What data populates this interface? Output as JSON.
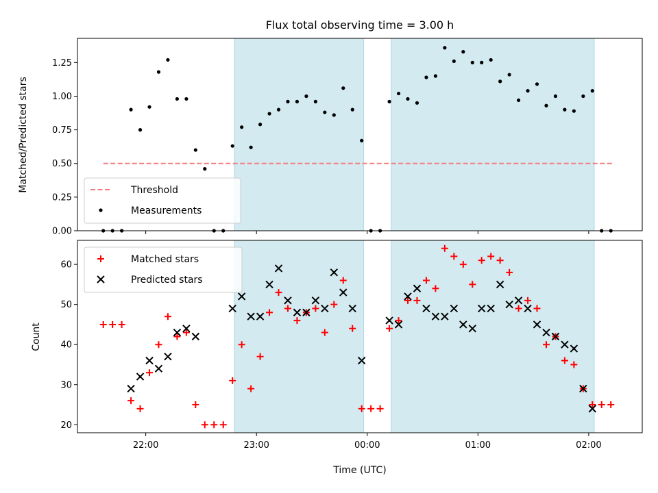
{
  "chart_data": [
    {
      "type": "scatter",
      "title": "Flux total observing time = 3.00 h",
      "ylabel": "Matched/Predicted stars",
      "xlabel": "",
      "ylim": [
        0,
        1.43
      ],
      "yticks": [
        0.0,
        0.25,
        0.5,
        0.75,
        1.0,
        1.25
      ],
      "ytick_labels": [
        "0.00",
        "0.25",
        "0.50",
        "0.75",
        "1.00",
        "1.25"
      ],
      "xlim": [
        "21:23",
        "02:29"
      ],
      "xticks": [
        "22:00",
        "23:00",
        "00:00",
        "01:00",
        "02:00"
      ],
      "shaded_intervals": [
        [
          "22:48",
          "23:58"
        ],
        [
          "00:13",
          "02:03"
        ]
      ],
      "shade_color": "#d3eaf1",
      "threshold": {
        "name": "Threshold",
        "value": 0.5,
        "x_range": [
          "21:37",
          "02:13"
        ],
        "color": "#f27d7d"
      },
      "legend": {
        "position": "lower-left",
        "entries": [
          "Threshold",
          "Measurements"
        ]
      },
      "series": [
        {
          "name": "Measurements",
          "color": "#000000",
          "marker": "dot",
          "x": [
            "21:37",
            "21:42",
            "21:47",
            "21:52",
            "21:57",
            "22:02",
            "22:07",
            "22:12",
            "22:17",
            "22:22",
            "22:27",
            "22:32",
            "22:37",
            "22:42",
            "22:47",
            "22:52",
            "22:57",
            "23:02",
            "23:07",
            "23:12",
            "23:17",
            "23:22",
            "23:27",
            "23:32",
            "23:37",
            "23:42",
            "23:47",
            "23:52",
            "23:57",
            "00:02",
            "00:07",
            "00:12",
            "00:17",
            "00:22",
            "00:27",
            "00:32",
            "00:37",
            "00:42",
            "00:47",
            "00:52",
            "00:57",
            "01:02",
            "01:07",
            "01:12",
            "01:17",
            "01:22",
            "01:27",
            "01:32",
            "01:37",
            "01:42",
            "01:47",
            "01:52",
            "01:57",
            "02:02",
            "02:07",
            "02:12"
          ],
          "y": [
            0.0,
            0.0,
            0.0,
            0.9,
            0.75,
            0.92,
            1.18,
            1.27,
            0.98,
            0.98,
            0.6,
            0.46,
            0.0,
            0.0,
            0.63,
            0.77,
            0.62,
            0.79,
            0.87,
            0.9,
            0.96,
            0.96,
            1.0,
            0.96,
            0.88,
            0.86,
            1.06,
            0.9,
            0.67,
            0.0,
            0.0,
            0.96,
            1.02,
            0.98,
            0.95,
            1.14,
            1.15,
            1.36,
            1.26,
            1.33,
            1.25,
            1.25,
            1.27,
            1.11,
            1.16,
            0.97,
            1.04,
            1.09,
            0.93,
            1.0,
            0.9,
            0.89,
            1.0,
            1.04,
            0.0,
            0.0
          ]
        }
      ]
    },
    {
      "type": "scatter",
      "title": "",
      "ylabel": "Count",
      "xlabel": "Time (UTC)",
      "ylim": [
        18,
        66
      ],
      "yticks": [
        20,
        30,
        40,
        50,
        60
      ],
      "ytick_labels": [
        "20",
        "30",
        "40",
        "50",
        "60"
      ],
      "xlim": [
        "21:23",
        "02:29"
      ],
      "xticks": [
        "22:00",
        "23:00",
        "00:00",
        "01:00",
        "02:00"
      ],
      "shaded_intervals": [
        [
          "22:48",
          "23:58"
        ],
        [
          "00:13",
          "02:03"
        ]
      ],
      "shade_color": "#d3eaf1",
      "legend": {
        "position": "top-left",
        "entries": [
          "Matched stars",
          "Predicted stars"
        ]
      },
      "series": [
        {
          "name": "Matched stars",
          "color": "#ff0000",
          "marker": "plus",
          "x": [
            "21:37",
            "21:42",
            "21:47",
            "21:52",
            "21:57",
            "22:02",
            "22:07",
            "22:12",
            "22:17",
            "22:22",
            "22:27",
            "22:32",
            "22:37",
            "22:42",
            "22:47",
            "22:52",
            "22:57",
            "23:02",
            "23:07",
            "23:12",
            "23:17",
            "23:22",
            "23:27",
            "23:32",
            "23:37",
            "23:42",
            "23:47",
            "23:52",
            "23:57",
            "00:02",
            "00:07",
            "00:12",
            "00:17",
            "00:22",
            "00:27",
            "00:32",
            "00:37",
            "00:42",
            "00:47",
            "00:52",
            "00:57",
            "01:02",
            "01:07",
            "01:12",
            "01:17",
            "01:22",
            "01:27",
            "01:32",
            "01:37",
            "01:42",
            "01:47",
            "01:52",
            "01:57",
            "02:02",
            "02:07",
            "02:12"
          ],
          "y": [
            45,
            45,
            45,
            26,
            24,
            33,
            40,
            47,
            42,
            43,
            25,
            20,
            20,
            20,
            31,
            40,
            29,
            37,
            48,
            53,
            49,
            46,
            48,
            49,
            43,
            50,
            56,
            44,
            24,
            24,
            24,
            44,
            46,
            51,
            51,
            56,
            54,
            64,
            62,
            60,
            55,
            61,
            62,
            61,
            58,
            49,
            51,
            49,
            40,
            42,
            36,
            35,
            29,
            25,
            25,
            25
          ]
        },
        {
          "name": "Predicted stars",
          "color": "#000000",
          "marker": "x",
          "x": [
            "21:52",
            "21:57",
            "22:02",
            "22:07",
            "22:12",
            "22:17",
            "22:22",
            "22:27",
            "22:47",
            "22:52",
            "22:57",
            "23:02",
            "23:07",
            "23:12",
            "23:17",
            "23:22",
            "23:27",
            "23:32",
            "23:37",
            "23:42",
            "23:47",
            "23:52",
            "23:57",
            "00:12",
            "00:17",
            "00:22",
            "00:27",
            "00:32",
            "00:37",
            "00:42",
            "00:47",
            "00:52",
            "00:57",
            "01:02",
            "01:07",
            "01:12",
            "01:17",
            "01:22",
            "01:27",
            "01:32",
            "01:37",
            "01:42",
            "01:47",
            "01:52",
            "01:57",
            "02:02"
          ],
          "y": [
            29,
            32,
            36,
            34,
            37,
            43,
            44,
            42,
            49,
            52,
            47,
            47,
            55,
            59,
            51,
            48,
            48,
            51,
            49,
            58,
            53,
            49,
            36,
            46,
            45,
            52,
            54,
            49,
            47,
            47,
            49,
            45,
            44,
            49,
            49,
            55,
            50,
            51,
            49,
            45,
            43,
            42,
            40,
            39,
            29,
            24
          ]
        }
      ]
    }
  ]
}
